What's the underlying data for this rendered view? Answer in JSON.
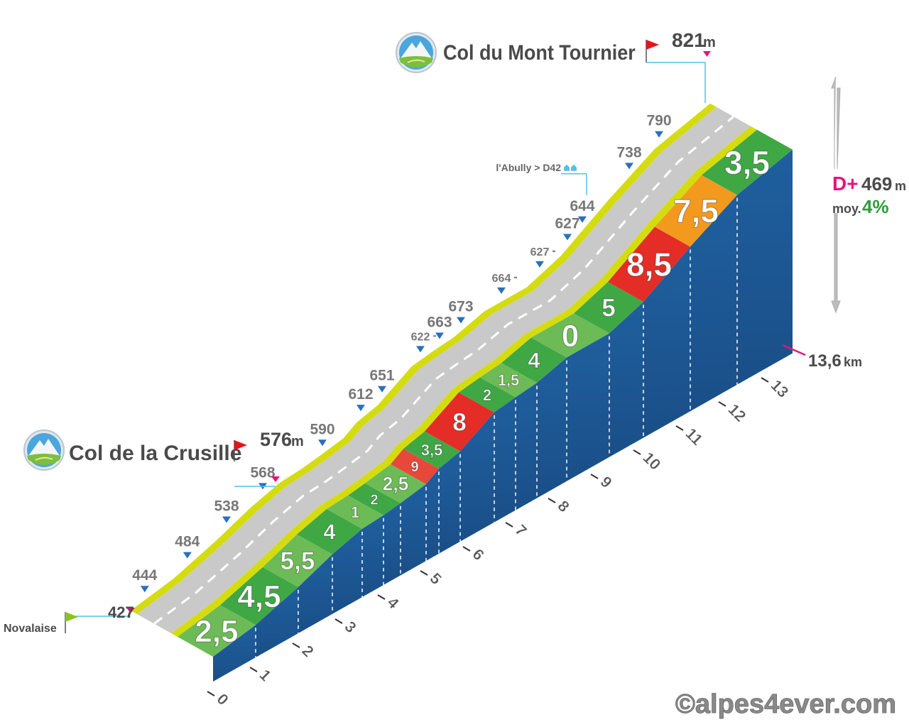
{
  "chart_data": {
    "type": "climb-profile",
    "start": {
      "name": "Novalaise",
      "altitude": 427
    },
    "passes": [
      {
        "name": "Col de la Crusille",
        "altitude": 576,
        "km": 3.4
      },
      {
        "name": "Col du Mont Tournier",
        "altitude": 821,
        "km": 13.6
      }
    ],
    "unit": "m",
    "distance": {
      "value": 13.6,
      "label": "13,6"
    },
    "distance_unit": "km",
    "gain": {
      "label": "D+",
      "value": 469
    },
    "average": {
      "label": "moy.",
      "value": 4,
      "value_label": "4%"
    },
    "xlim": [
      0,
      13.6
    ],
    "xticks": [
      0,
      1,
      2,
      3,
      4,
      5,
      6,
      7,
      8,
      9,
      10,
      11,
      12,
      13
    ],
    "segments": {
      "bounds": [
        0,
        1,
        2,
        2.8,
        3.5,
        4,
        4.4,
        5,
        5.3,
        5.8,
        6.6,
        7.1,
        7.6,
        8.3,
        9.3,
        10.1,
        11.2,
        12.3,
        13.6
      ],
      "values": [
        2.5,
        4.5,
        5.5,
        4,
        1,
        2,
        2.5,
        9,
        3.5,
        8,
        2,
        1.5,
        4,
        0,
        5,
        8.5,
        7.5,
        3.5
      ],
      "value_labels": [
        "2,5",
        "4,5",
        "5,5",
        "4",
        "1",
        "2",
        "2,5",
        "9",
        "3,5",
        "8",
        "2",
        "1,5",
        "4",
        "0",
        "5",
        "8,5",
        "7,5",
        "3,5"
      ],
      "colors": [
        "#6dbb57",
        "#3fa845",
        "#6dbb57",
        "#3fa845",
        "#6dbb57",
        "#3fa845",
        "#6dbb57",
        "#e8483a",
        "#3fa845",
        "#e32d26",
        "#3fa845",
        "#6dbb57",
        "#3fa845",
        "#6dbb57",
        "#3fa845",
        "#e32d26",
        "#f39a1e",
        "#3fa845"
      ]
    },
    "waypoints": [
      {
        "altitude": 444,
        "km": 0.33
      },
      {
        "altitude": 484,
        "km": 1.33
      },
      {
        "altitude": 538,
        "km": 2.25
      },
      {
        "altitude": 568,
        "km": 3.1
      },
      {
        "altitude": 590,
        "km": 4.5
      },
      {
        "altitude": 612,
        "km": 5.4
      },
      {
        "altitude": 651,
        "km": 5.9
      },
      {
        "altitude": 622,
        "km": 6.8,
        "minor": true
      },
      {
        "altitude": 663,
        "km": 7.25
      },
      {
        "altitude": 673,
        "km": 7.75
      },
      {
        "altitude": 664,
        "km": 8.7,
        "minor": true
      },
      {
        "altitude": 627,
        "km": 9.6,
        "minor": true
      },
      {
        "altitude": 627,
        "km": 10.25
      },
      {
        "altitude": 644,
        "km": 10.6
      },
      {
        "altitude": 738,
        "km": 11.7
      },
      {
        "altitude": 790,
        "km": 12.4
      }
    ],
    "annotation": {
      "text": "l'Abully > D42",
      "km": 10.6
    },
    "credit": "©alpes4ever.com"
  }
}
